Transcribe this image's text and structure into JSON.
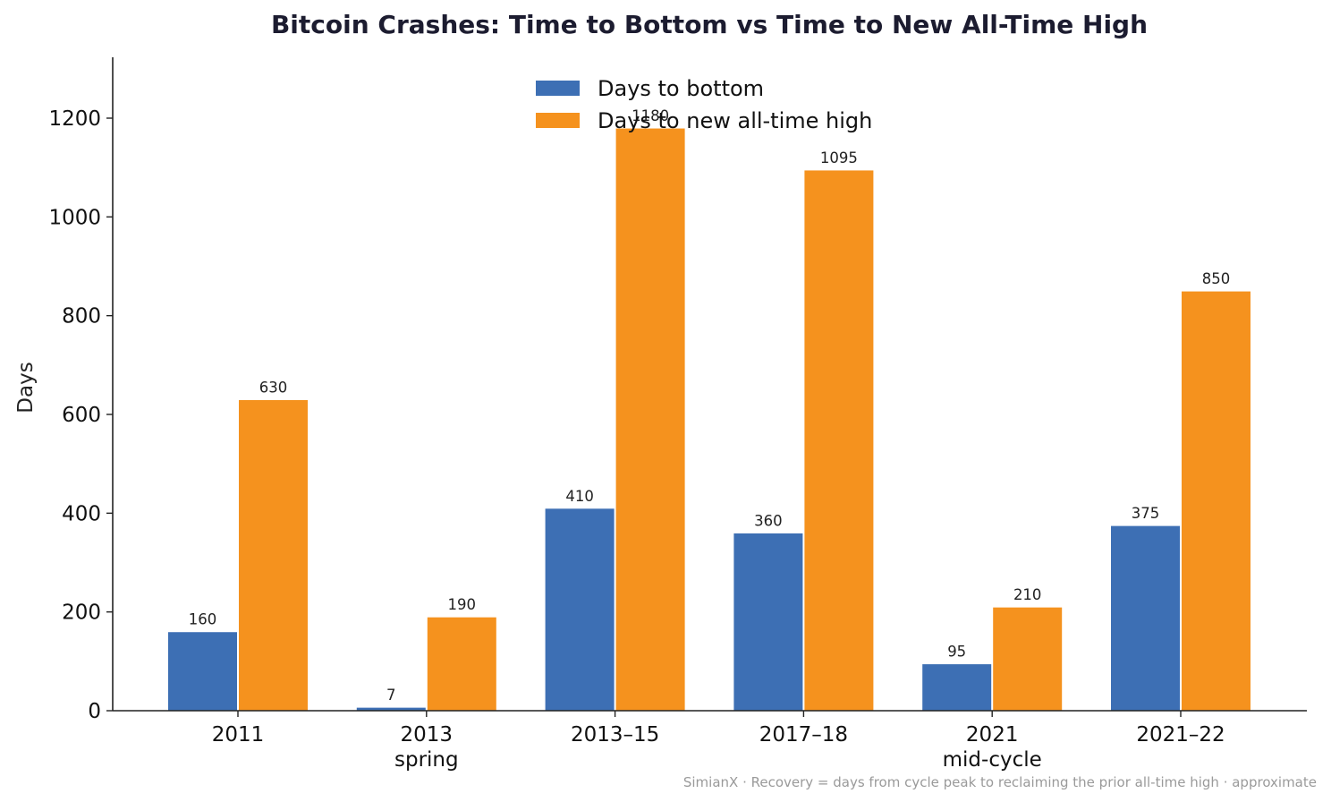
{
  "chart_data": {
    "type": "bar",
    "title": "Bitcoin Crashes: Time to Bottom vs Time to New All-Time High",
    "xlabel": "",
    "ylabel": "Days",
    "ylim": [
      0,
      1320
    ],
    "yticks": [
      0,
      200,
      400,
      600,
      800,
      1000,
      1200
    ],
    "categories": [
      [
        "2011"
      ],
      [
        "2013",
        "spring"
      ],
      [
        "2013–15"
      ],
      [
        "2017–18"
      ],
      [
        "2021",
        "mid-cycle"
      ],
      [
        "2021–22"
      ]
    ],
    "series": [
      {
        "name": "Days to bottom",
        "color": "#3d6fb4",
        "values": [
          160,
          7,
          410,
          360,
          95,
          375
        ]
      },
      {
        "name": "Days to new all-time high",
        "color": "#f5921e",
        "values": [
          630,
          190,
          1180,
          1095,
          210,
          850
        ]
      }
    ],
    "legend_position": "top-center",
    "grid": false,
    "footnote": "SimianX · Recovery = days from cycle peak to reclaiming the prior all-time high · approximate"
  }
}
